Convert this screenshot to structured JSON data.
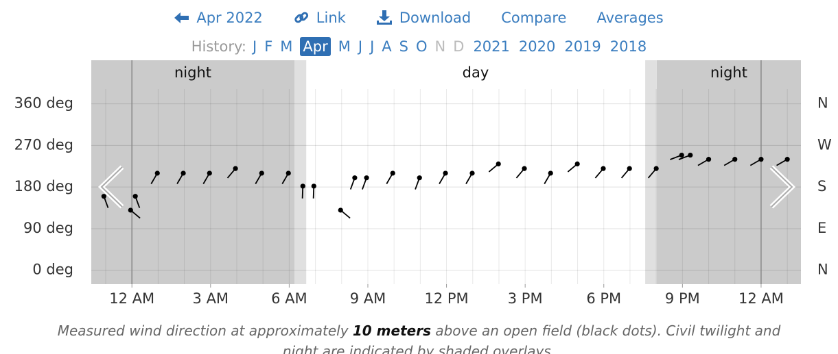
{
  "nav": [
    "Apr 2022",
    "Link",
    "Download",
    "Compare",
    "Averages"
  ],
  "history": {
    "label": "History:",
    "months": [
      "J",
      "F",
      "M",
      "Apr",
      "M",
      "J",
      "J",
      "A",
      "S",
      "O",
      "N",
      "D"
    ],
    "selected": 3,
    "disabled": [
      10,
      11
    ],
    "years": [
      "2021",
      "2020",
      "2019",
      "2018"
    ]
  },
  "caption": [
    "Measured wind direction at approximately ",
    "10 meters",
    " above an open field (black dots). Civil twilight and",
    "night are indicated by shaded overlays."
  ],
  "chart_data": {
    "type": "scatter",
    "x": [
      -1.07,
      -0.05,
      0.13,
      0.97,
      1.96,
      2.96,
      3.95,
      4.95,
      5.97,
      6.52,
      6.94,
      7.96,
      8.5,
      8.95,
      9.95,
      10.97,
      11.96,
      12.98,
      13.98,
      14.97,
      15.97,
      16.99,
      17.98,
      18.98,
      20,
      20.97,
      21.3,
      22,
      23,
      24,
      25
    ],
    "values": [
      160,
      130,
      160,
      210,
      210,
      210,
      220,
      210,
      210,
      182,
      182,
      130,
      200,
      200,
      210,
      200,
      210,
      210,
      230,
      220,
      210,
      230,
      220,
      220,
      220,
      249,
      249,
      240,
      240,
      240,
      240
    ],
    "color": "#000000",
    "xlim": [
      -1.55,
      25.52
    ],
    "xticks": [
      {
        "value": 0,
        "label": "12 AM"
      },
      {
        "value": 3,
        "label": "3 AM"
      },
      {
        "value": 6,
        "label": "6 AM"
      },
      {
        "value": 9,
        "label": "9 AM"
      },
      {
        "value": 12,
        "label": "12 PM"
      },
      {
        "value": 15,
        "label": "3 PM"
      },
      {
        "value": 18,
        "label": "6 PM"
      },
      {
        "value": 21,
        "label": "9 PM"
      },
      {
        "value": 24,
        "label": "12 AM"
      }
    ],
    "ylim": [
      -30,
      392
    ],
    "yticks": [
      {
        "value": 0,
        "label": "0 deg"
      },
      {
        "value": 90,
        "label": "90 deg"
      },
      {
        "value": 180,
        "label": "180 deg"
      },
      {
        "value": 270,
        "label": "270 deg"
      },
      {
        "value": 360,
        "label": "360 deg"
      }
    ],
    "y2lim": [
      -30,
      392
    ],
    "y2ticks": [
      {
        "value": 0,
        "label": "N"
      },
      {
        "value": 90,
        "label": "E"
      },
      {
        "value": 180,
        "label": "S"
      },
      {
        "value": 270,
        "label": "W"
      },
      {
        "value": 360,
        "label": "N"
      }
    ],
    "periods": [
      {
        "label": "night",
        "start": -1.55,
        "end": 6.2
      },
      {
        "label": "day",
        "start": 6.2,
        "end": 20.02
      },
      {
        "label": "night",
        "start": 20.02,
        "end": 25.52
      }
    ],
    "twilight": [
      [
        6.2,
        6.65
      ],
      [
        19.58,
        20.02
      ]
    ],
    "midnights": [
      0,
      24
    ],
    "grid": true
  }
}
